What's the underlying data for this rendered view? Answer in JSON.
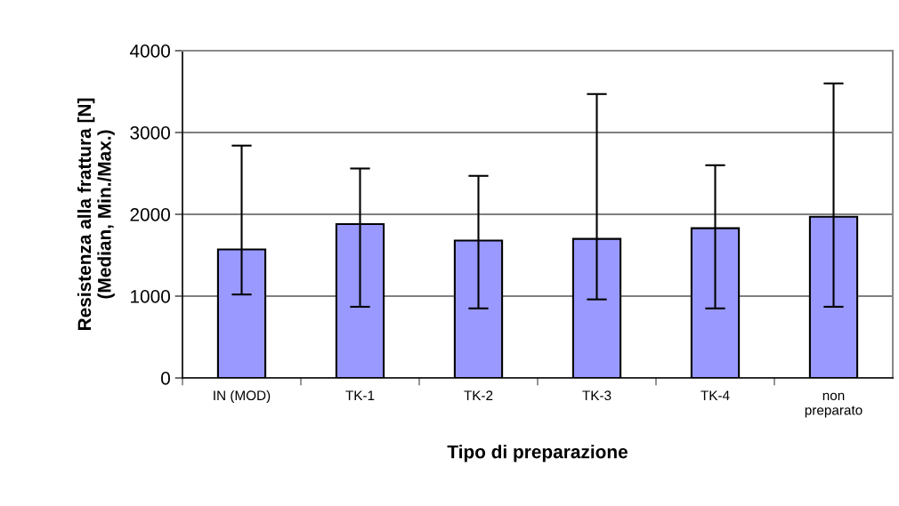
{
  "chart_data": {
    "type": "bar",
    "xlabel": "Tipo di preparazione",
    "ylabel": "Resistenza alla frattura [N]\n(Median, Min./Max.)",
    "categories": [
      "IN (MOD)",
      "TK-1",
      "TK-2",
      "TK-3",
      "TK-4",
      "non\npreparato"
    ],
    "values": [
      1570,
      1880,
      1680,
      1700,
      1830,
      1970
    ],
    "errors": [
      [
        1020,
        2840
      ],
      [
        870,
        2560
      ],
      [
        850,
        2470
      ],
      [
        960,
        3470
      ],
      [
        850,
        2600
      ],
      [
        870,
        3600
      ]
    ],
    "color": "#9999ff",
    "ylim": [
      0,
      4000
    ],
    "yticks": [
      0,
      1000,
      2000,
      3000,
      4000
    ],
    "grid": "y"
  }
}
